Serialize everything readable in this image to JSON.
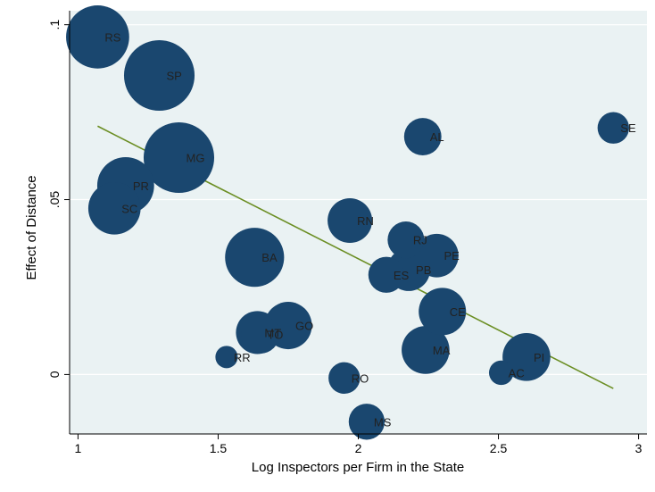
{
  "chart_data": {
    "type": "scatter",
    "title": "",
    "xlabel": "Log Inspectors per Firm in the State",
    "ylabel": "Effect of Distance",
    "xlim": [
      0.97,
      3.03
    ],
    "ylim": [
      -0.017,
      0.104
    ],
    "x_ticks": [
      1,
      1.5,
      2,
      2.5,
      3
    ],
    "x_tick_labels": [
      "1",
      "1.5",
      "2",
      "2.5",
      "3"
    ],
    "y_ticks": [
      0,
      0.05,
      0.1
    ],
    "y_tick_labels": [
      "0",
      ".05",
      ".1"
    ],
    "grid": true,
    "legend": "none",
    "marker_style": "bubble (size = weight)",
    "colors": {
      "plot_background": "#eaf2f3",
      "outer_background": "#ffffff",
      "bubble": "#1a476f",
      "fit_line": "#6b8e23",
      "gridline": "#ffffff",
      "axis": "#000000"
    },
    "points": [
      {
        "label": "RS",
        "x": 1.07,
        "y": 0.0965,
        "size": 8.0
      },
      {
        "label": "SP",
        "x": 1.29,
        "y": 0.0855,
        "size": 10.0
      },
      {
        "label": "MG",
        "x": 1.36,
        "y": 0.062,
        "size": 10.0
      },
      {
        "label": "PR",
        "x": 1.17,
        "y": 0.054,
        "size": 6.5
      },
      {
        "label": "SC",
        "x": 1.13,
        "y": 0.0475,
        "size": 5.5
      },
      {
        "label": "BA",
        "x": 1.63,
        "y": 0.0335,
        "size": 7.0
      },
      {
        "label": "RN",
        "x": 1.97,
        "y": 0.044,
        "size": 4.0
      },
      {
        "label": "RJ",
        "x": 2.17,
        "y": 0.0385,
        "size": 2.7
      },
      {
        "label": "PE",
        "x": 2.28,
        "y": 0.034,
        "size": 3.8
      },
      {
        "label": "PB",
        "x": 2.18,
        "y": 0.03,
        "size": 3.7
      },
      {
        "label": "ES",
        "x": 2.1,
        "y": 0.0285,
        "size": 2.6
      },
      {
        "label": "CE",
        "x": 2.3,
        "y": 0.018,
        "size": 4.5
      },
      {
        "label": "GO",
        "x": 1.75,
        "y": 0.014,
        "size": 4.5
      },
      {
        "label": "MT",
        "x": 1.64,
        "y": 0.012,
        "size": 3.7
      },
      {
        "label": "TO",
        "x": 1.65,
        "y": 0.0115,
        "size": 3.0
      },
      {
        "label": "MA",
        "x": 2.24,
        "y": 0.007,
        "size": 4.6
      },
      {
        "label": "PI",
        "x": 2.6,
        "y": 0.005,
        "size": 4.6
      },
      {
        "label": "SE",
        "x": 2.91,
        "y": 0.0705,
        "size": 2.0
      },
      {
        "label": "AL",
        "x": 2.23,
        "y": 0.068,
        "size": 2.8
      },
      {
        "label": "RR",
        "x": 1.53,
        "y": 0.005,
        "size": 1.0
      },
      {
        "label": "AC",
        "x": 2.51,
        "y": 0.0005,
        "size": 1.2
      },
      {
        "label": "RO",
        "x": 1.95,
        "y": -0.001,
        "size": 2.0
      },
      {
        "label": "MS",
        "x": 2.03,
        "y": -0.0135,
        "size": 2.6
      }
    ],
    "fit_line": {
      "x": [
        1.07,
        2.91
      ],
      "y": [
        0.071,
        -0.004
      ]
    }
  }
}
